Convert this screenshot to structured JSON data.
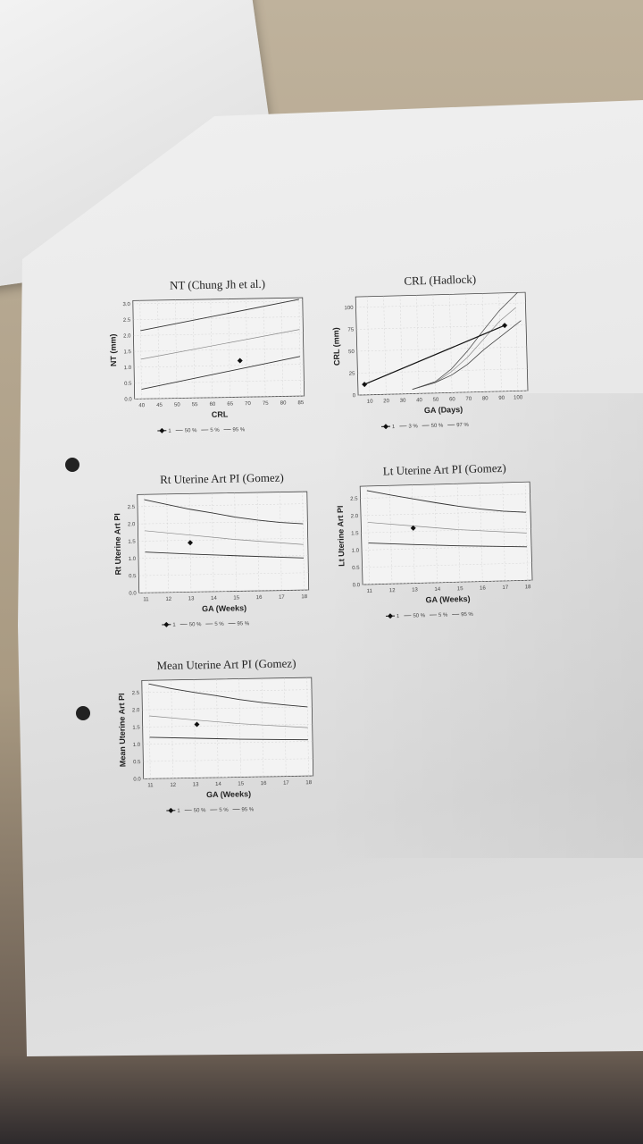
{
  "chart_data": [
    {
      "type": "line",
      "title": "NT (Chung Jh et al.)",
      "xlabel": "CRL",
      "ylabel": "NT (mm)",
      "xlim": [
        38,
        86
      ],
      "ylim": [
        0,
        3.1
      ],
      "xticks": [
        "40",
        "45",
        "50",
        "55",
        "60",
        "65",
        "70",
        "75",
        "80",
        "85"
      ],
      "xtick_values": [
        40,
        45,
        50,
        55,
        60,
        65,
        70,
        75,
        80,
        85
      ],
      "yticks": [
        "0.0",
        "0.5",
        "1.0",
        "1.5",
        "2.0",
        "2.5",
        "3.0"
      ],
      "ytick_values": [
        0,
        0.5,
        1,
        1.5,
        2,
        2.5,
        3
      ],
      "legend": [
        "1",
        "50 %",
        "5 %",
        "95 %"
      ],
      "grid": true,
      "series": [
        {
          "name": "1",
          "points": [
            [
              68,
              1.15
            ]
          ],
          "marker": true
        },
        {
          "name": "50 %",
          "points": [
            [
              40,
              1.25
            ],
            [
              85,
              2.1
            ]
          ]
        },
        {
          "name": "5 %",
          "points": [
            [
              40,
              0.3
            ],
            [
              85,
              1.25
            ]
          ]
        },
        {
          "name": "95 %",
          "points": [
            [
              40,
              2.15
            ],
            [
              85,
              3.05
            ]
          ]
        }
      ]
    },
    {
      "type": "line",
      "title": "CRL (Hadlock)",
      "xlabel": "GA (Days)",
      "ylabel": "CRL (mm)",
      "xlim": [
        3,
        106
      ],
      "ylim": [
        0,
        112
      ],
      "xticks": [
        "10",
        "20",
        "30",
        "40",
        "50",
        "60",
        "70",
        "80",
        "90",
        "100"
      ],
      "xtick_values": [
        10,
        20,
        30,
        40,
        50,
        60,
        70,
        80,
        90,
        100
      ],
      "yticks": [
        "0",
        "25",
        "50",
        "75",
        "100"
      ],
      "ytick_values": [
        0,
        25,
        50,
        75,
        100
      ],
      "legend": [
        "1",
        "3 %",
        "50 %",
        "97 %"
      ],
      "grid": true,
      "series": [
        {
          "name": "1",
          "points": [
            [
              7,
              12
            ],
            [
              93,
              75
            ]
          ],
          "marker": true
        },
        {
          "name": "3 %",
          "points": [
            [
              36,
              5
            ],
            [
              50,
              12
            ],
            [
              60,
              20
            ],
            [
              70,
              32
            ],
            [
              80,
              48
            ],
            [
              90,
              62
            ],
            [
              103,
              80
            ]
          ]
        },
        {
          "name": "50 %",
          "points": [
            [
              36,
              5
            ],
            [
              50,
              12
            ],
            [
              60,
              24
            ],
            [
              70,
              40
            ],
            [
              80,
              60
            ],
            [
              90,
              80
            ],
            [
              100,
              95
            ]
          ]
        },
        {
          "name": "97 %",
          "points": [
            [
              36,
              5
            ],
            [
              50,
              13
            ],
            [
              60,
              27
            ],
            [
              70,
              47
            ],
            [
              80,
              70
            ],
            [
              90,
              92
            ],
            [
              103,
              115
            ]
          ]
        }
      ]
    },
    {
      "type": "line",
      "title": "Rt Uterine Art PI (Gomez)",
      "xlabel": "GA (Weeks)",
      "ylabel": "Rt Uterine Art PI",
      "xlim": [
        10.7,
        18.2
      ],
      "ylim": [
        0,
        2.85
      ],
      "xticks": [
        "11",
        "12",
        "13",
        "14",
        "15",
        "16",
        "17",
        "18"
      ],
      "xtick_values": [
        11,
        12,
        13,
        14,
        15,
        16,
        17,
        18
      ],
      "yticks": [
        "0.0",
        "0.5",
        "1.0",
        "1.5",
        "2.0",
        "2.5"
      ],
      "ytick_values": [
        0,
        0.5,
        1,
        1.5,
        2,
        2.5
      ],
      "legend": [
        "1",
        "50 %",
        "5 %",
        "95 %"
      ],
      "grid": true,
      "series": [
        {
          "name": "1",
          "points": [
            [
              13,
              1.43
            ]
          ],
          "marker": true
        },
        {
          "name": "50 %",
          "points": [
            [
              11,
              1.8
            ],
            [
              13,
              1.65
            ],
            [
              15,
              1.5
            ],
            [
              18,
              1.32
            ]
          ]
        },
        {
          "name": "5 %",
          "points": [
            [
              11,
              1.18
            ],
            [
              13,
              1.1
            ],
            [
              15,
              1.03
            ],
            [
              18,
              0.93
            ]
          ]
        },
        {
          "name": "95 %",
          "points": [
            [
              11,
              2.7
            ],
            [
              12,
              2.55
            ],
            [
              13,
              2.4
            ],
            [
              14,
              2.28
            ],
            [
              15,
              2.15
            ],
            [
              16,
              2.05
            ],
            [
              17,
              1.97
            ],
            [
              18,
              1.92
            ]
          ]
        }
      ]
    },
    {
      "type": "line",
      "title": "Lt Uterine Art PI (Gomez)",
      "xlabel": "GA (Weeks)",
      "ylabel": "Lt Uterine Art PI",
      "xlim": [
        10.7,
        18.2
      ],
      "ylim": [
        0,
        2.85
      ],
      "xticks": [
        "11",
        "12",
        "13",
        "14",
        "15",
        "16",
        "17",
        "18"
      ],
      "xtick_values": [
        11,
        12,
        13,
        14,
        15,
        16,
        17,
        18
      ],
      "yticks": [
        "0.0",
        "0.5",
        "1.0",
        "1.5",
        "2.0",
        "2.5"
      ],
      "ytick_values": [
        0,
        0.5,
        1,
        1.5,
        2,
        2.5
      ],
      "legend": [
        "1",
        "50 %",
        "5 %",
        "95 %"
      ],
      "grid": true,
      "series": [
        {
          "name": "1",
          "points": [
            [
              13,
              1.6
            ]
          ],
          "marker": true
        },
        {
          "name": "50 %",
          "points": [
            [
              11,
              1.8
            ],
            [
              13,
              1.66
            ],
            [
              15,
              1.52
            ],
            [
              18,
              1.37
            ]
          ]
        },
        {
          "name": "5 %",
          "points": [
            [
              11,
              1.2
            ],
            [
              13,
              1.12
            ],
            [
              15,
              1.05
            ],
            [
              18,
              0.97
            ]
          ]
        },
        {
          "name": "95 %",
          "points": [
            [
              11,
              2.72
            ],
            [
              12,
              2.58
            ],
            [
              13,
              2.45
            ],
            [
              14,
              2.32
            ],
            [
              15,
              2.2
            ],
            [
              16,
              2.1
            ],
            [
              17,
              2.02
            ],
            [
              18,
              1.97
            ]
          ]
        }
      ]
    },
    {
      "type": "line",
      "title": "Mean Uterine Art PI (Gomez)",
      "xlabel": "GA (Weeks)",
      "ylabel": "Mean Uterine Art PI",
      "xlim": [
        10.7,
        18.2
      ],
      "ylim": [
        0,
        2.85
      ],
      "xticks": [
        "11",
        "12",
        "13",
        "14",
        "15",
        "16",
        "17",
        "18"
      ],
      "xtick_values": [
        11,
        12,
        13,
        14,
        15,
        16,
        17,
        18
      ],
      "yticks": [
        "0.0",
        "0.5",
        "1.0",
        "1.5",
        "2.0",
        "2.5"
      ],
      "ytick_values": [
        0,
        0.5,
        1,
        1.5,
        2,
        2.5
      ],
      "legend": [
        "1",
        "50 %",
        "5 %",
        "95 %"
      ],
      "grid": true,
      "series": [
        {
          "name": "1",
          "points": [
            [
              13.1,
              1.55
            ]
          ],
          "marker": true
        },
        {
          "name": "50 %",
          "points": [
            [
              11,
              1.82
            ],
            [
              13,
              1.68
            ],
            [
              15,
              1.55
            ],
            [
              18,
              1.4
            ]
          ]
        },
        {
          "name": "5 %",
          "points": [
            [
              11,
              1.2
            ],
            [
              13,
              1.15
            ],
            [
              15,
              1.1
            ],
            [
              18,
              1.05
            ]
          ]
        },
        {
          "name": "95 %",
          "points": [
            [
              11,
              2.75
            ],
            [
              12,
              2.6
            ],
            [
              13,
              2.48
            ],
            [
              14,
              2.37
            ],
            [
              15,
              2.25
            ],
            [
              16,
              2.15
            ],
            [
              17,
              2.07
            ],
            [
              18,
              2.0
            ]
          ]
        }
      ]
    }
  ]
}
